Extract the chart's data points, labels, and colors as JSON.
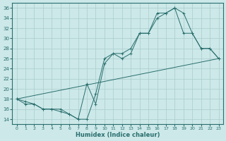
{
  "xlabel": "Humidex (Indice chaleur)",
  "xlim": [
    -0.5,
    23.5
  ],
  "ylim": [
    13,
    37
  ],
  "yticks": [
    14,
    16,
    18,
    20,
    22,
    24,
    26,
    28,
    30,
    32,
    34,
    36
  ],
  "xticks": [
    0,
    1,
    2,
    3,
    4,
    5,
    6,
    7,
    8,
    9,
    10,
    11,
    12,
    13,
    14,
    15,
    16,
    17,
    18,
    19,
    20,
    21,
    22,
    23
  ],
  "bg_color": "#cce8e8",
  "grid_color": "#aacccc",
  "line_color": "#2a6e6e",
  "line1_x": [
    0,
    1,
    2,
    3,
    4,
    5,
    6,
    7,
    8,
    9,
    10,
    11,
    12,
    13,
    14,
    15,
    16,
    17,
    18,
    19,
    20,
    21,
    22,
    23
  ],
  "line1_y": [
    18,
    17,
    17,
    16,
    16,
    15.5,
    15,
    14,
    21,
    17,
    25,
    27,
    26,
    27,
    31,
    31,
    34,
    35,
    36,
    31,
    31,
    28,
    28,
    26
  ],
  "line2_x": [
    0,
    1,
    2,
    3,
    4,
    5,
    6,
    7,
    8,
    9,
    10,
    11,
    12,
    13,
    14,
    15,
    16,
    17,
    18,
    19,
    20,
    21,
    22,
    23
  ],
  "line2_y": [
    18,
    17.5,
    17,
    16,
    16,
    16,
    15,
    14,
    14,
    19,
    26,
    27,
    27,
    28,
    31,
    31,
    35,
    35,
    36,
    35,
    31,
    28,
    28,
    26
  ],
  "line3_x": [
    0,
    23
  ],
  "line3_y": [
    18,
    26
  ]
}
